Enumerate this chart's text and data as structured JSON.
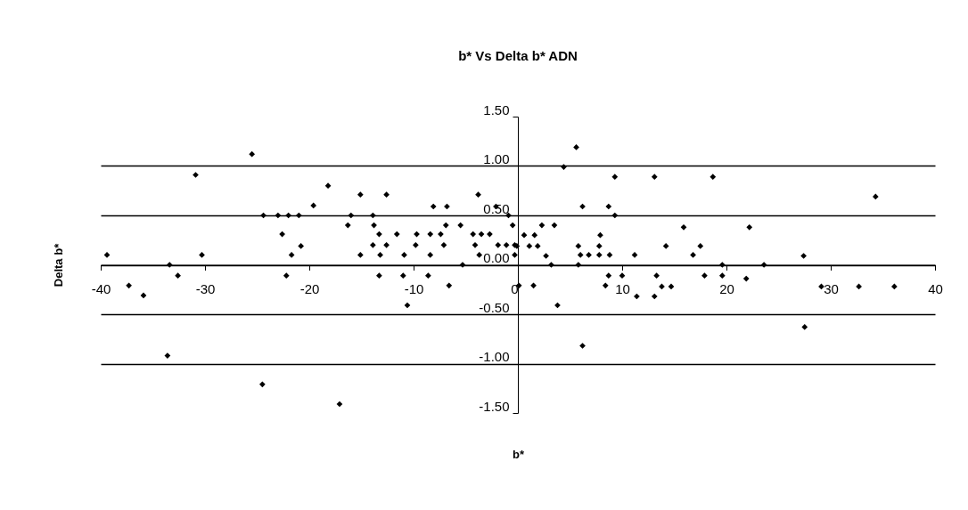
{
  "chart_data": {
    "type": "scatter",
    "title": "b* Vs Delta b* ADN",
    "xlabel": "b*",
    "ylabel": "Delta b*",
    "xlim": [
      -40,
      40
    ],
    "xticks": [
      -40,
      -30,
      -20,
      -10,
      0,
      10,
      20,
      30,
      40
    ],
    "ylim": [
      -1.5,
      1.5
    ],
    "yticks": [
      {
        "value": -1.5,
        "label": "-1.50"
      },
      {
        "value": -1,
        "label": "-1.00"
      },
      {
        "value": -0.5,
        "label": "-0.50"
      },
      {
        "value": 0,
        "label": "0.00"
      },
      {
        "value": 0.5,
        "label": "0.50"
      },
      {
        "value": 1,
        "label": "1.00"
      },
      {
        "value": 1.5,
        "label": "1.50"
      }
    ],
    "grid": "y",
    "marker": "diamond",
    "series": [
      {
        "color": "#000000",
        "x": [
          -25.5,
          -30.9,
          -24.4,
          -23.0,
          -22.0,
          -21.0,
          -22.6,
          -21.7,
          -39.4,
          -30.3,
          -20.8,
          -33.4,
          -32.6,
          -22.2,
          -37.3,
          -35.9,
          -33.6,
          -24.5,
          -18.2,
          -15.1,
          -12.6,
          -19.6,
          -16.0,
          -13.9,
          -16.3,
          -13.8,
          -13.3,
          -11.6,
          -9.7,
          -8.4,
          -7.4,
          -8.1,
          -6.8,
          -6.9,
          -5.5,
          -3.8,
          -2.1,
          -0.9,
          -0.5,
          -4.3,
          -3.5,
          -2.7,
          -13.9,
          -12.6,
          -9.8,
          -7.1,
          -4.1,
          -1.9,
          -1.1,
          -0.3,
          -15.1,
          -13.2,
          -10.9,
          -8.4,
          -3.7,
          -0.3,
          -5.3,
          -13.3,
          -11.0,
          -8.6,
          -6.6,
          -10.6,
          -17.1,
          5.6,
          4.4,
          9.3,
          13.1,
          18.7,
          6.2,
          8.7,
          9.3,
          2.3,
          3.5,
          15.9,
          0.6,
          1.6,
          7.9,
          -0.1,
          1.1,
          1.9,
          5.8,
          7.8,
          14.2,
          17.5,
          2.7,
          6.0,
          6.8,
          7.8,
          8.8,
          11.2,
          16.8,
          3.2,
          5.8,
          19.6,
          8.7,
          10.0,
          13.3,
          17.9,
          19.6,
          0.1,
          1.5,
          8.4,
          13.8,
          14.7,
          11.4,
          13.1,
          3.8,
          6.2,
          34.3,
          22.2,
          27.4,
          23.6,
          21.9,
          29.1,
          32.7,
          36.1,
          27.5
        ],
        "values": [
          1.12,
          0.91,
          0.5,
          0.5,
          0.5,
          0.5,
          0.31,
          0.1,
          0.1,
          0.1,
          0.19,
          0.0,
          -0.11,
          -0.11,
          -0.21,
          -0.31,
          -0.92,
          -1.21,
          0.8,
          0.71,
          0.71,
          0.6,
          0.5,
          0.5,
          0.4,
          0.4,
          0.31,
          0.31,
          0.31,
          0.31,
          0.31,
          0.59,
          0.59,
          0.4,
          0.4,
          0.71,
          0.59,
          0.5,
          0.4,
          0.31,
          0.31,
          0.31,
          0.2,
          0.2,
          0.2,
          0.2,
          0.2,
          0.2,
          0.2,
          0.2,
          0.1,
          0.1,
          0.1,
          0.1,
          0.1,
          0.1,
          0.0,
          -0.11,
          -0.11,
          -0.11,
          -0.21,
          -0.41,
          -1.41,
          1.19,
          0.99,
          0.89,
          0.89,
          0.89,
          0.59,
          0.59,
          0.5,
          0.4,
          0.4,
          0.38,
          0.3,
          0.3,
          0.3,
          0.19,
          0.19,
          0.19,
          0.19,
          0.19,
          0.19,
          0.19,
          0.09,
          0.1,
          0.1,
          0.1,
          0.1,
          0.1,
          0.1,
          0.0,
          0.0,
          0.0,
          -0.11,
          -0.11,
          -0.11,
          -0.11,
          -0.11,
          -0.21,
          -0.21,
          -0.21,
          -0.22,
          -0.22,
          -0.32,
          -0.32,
          -0.41,
          -0.82,
          0.69,
          0.38,
          0.09,
          0.0,
          -0.14,
          -0.22,
          -0.22,
          -0.22,
          -0.63
        ]
      }
    ]
  }
}
